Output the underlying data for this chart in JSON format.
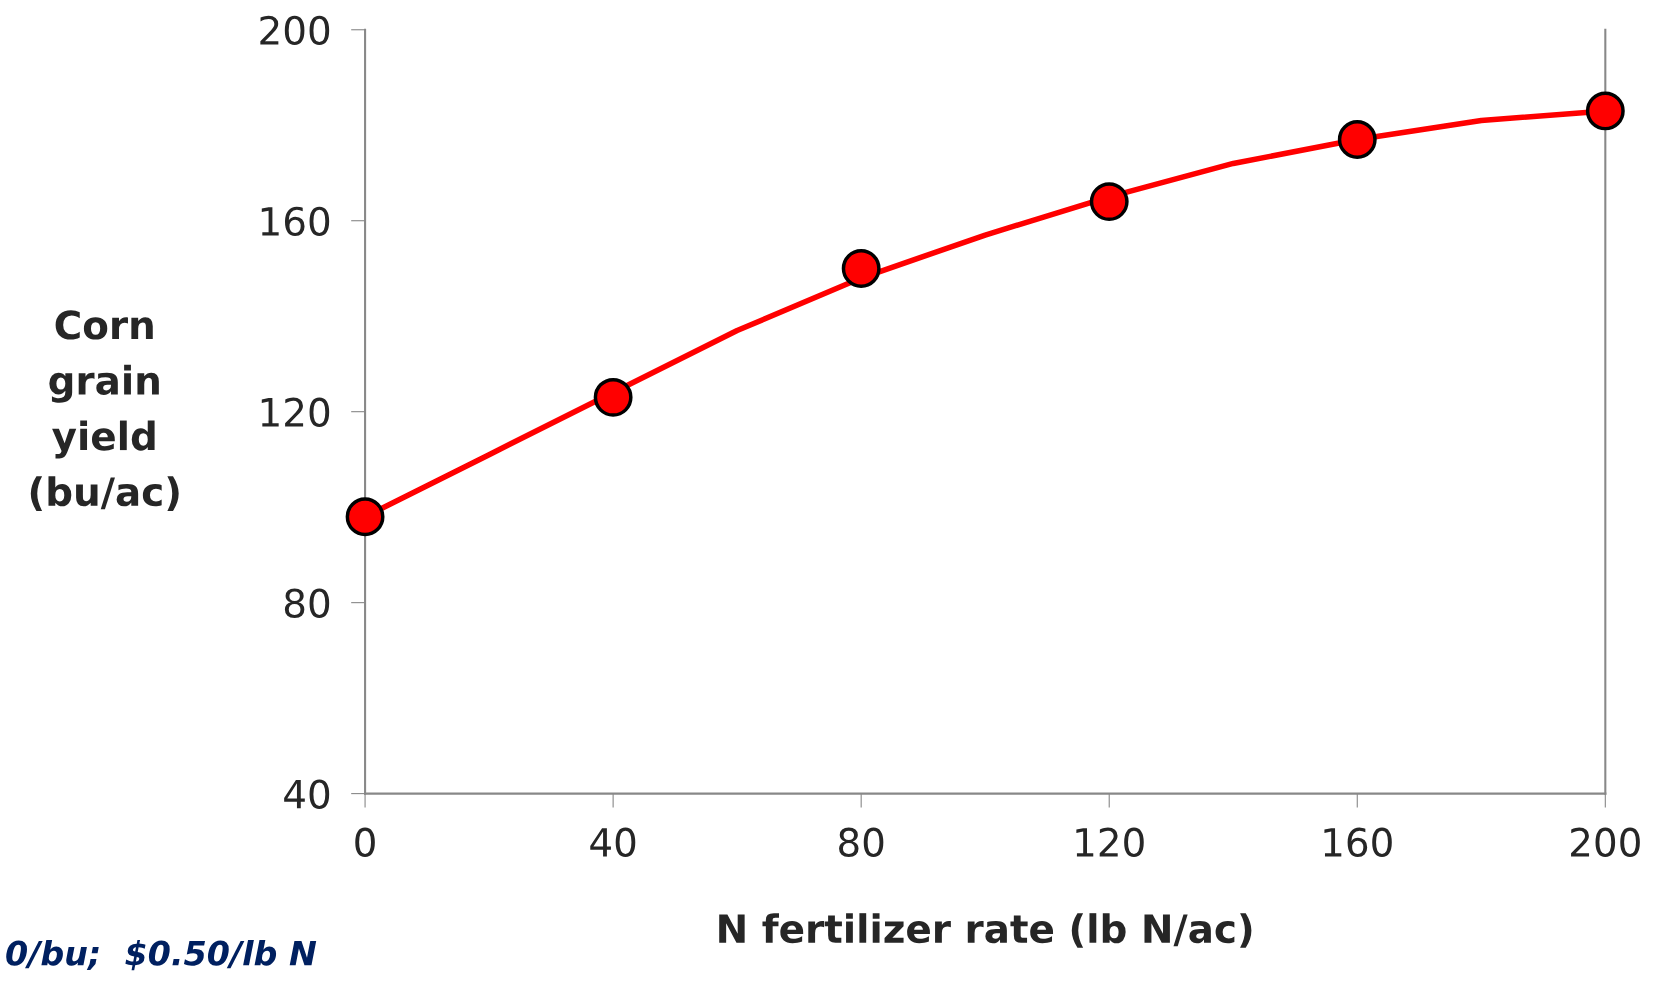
{
  "chart_data": {
    "type": "scatter",
    "xlabel": "N fertilizer rate (lb N/ac)",
    "ylabel": "Corn\ngrain\nyield\n(bu/ac)",
    "xlim": [
      0,
      200
    ],
    "xticks": [
      0,
      40,
      80,
      120,
      160,
      200
    ],
    "ylim": [
      40,
      200
    ],
    "yticks": [
      40,
      80,
      120,
      160,
      200
    ],
    "grid": false,
    "series": [
      {
        "type": "line",
        "color": "#ff0000",
        "marker": "none",
        "line_style": "solid",
        "x": [
          0,
          20,
          40,
          60,
          80,
          100,
          120,
          140,
          160,
          180,
          200
        ],
        "values": [
          98,
          111,
          124,
          137,
          148,
          157,
          165,
          172,
          177,
          181,
          183
        ]
      },
      {
        "color": "#ff0000",
        "marker": "circle",
        "x": [
          0,
          40,
          80,
          120,
          160,
          200
        ],
        "values": [
          98,
          123,
          150,
          164,
          177,
          183
        ]
      }
    ],
    "annotations": [
      "0/bu;  $0.50/lb N"
    ]
  }
}
